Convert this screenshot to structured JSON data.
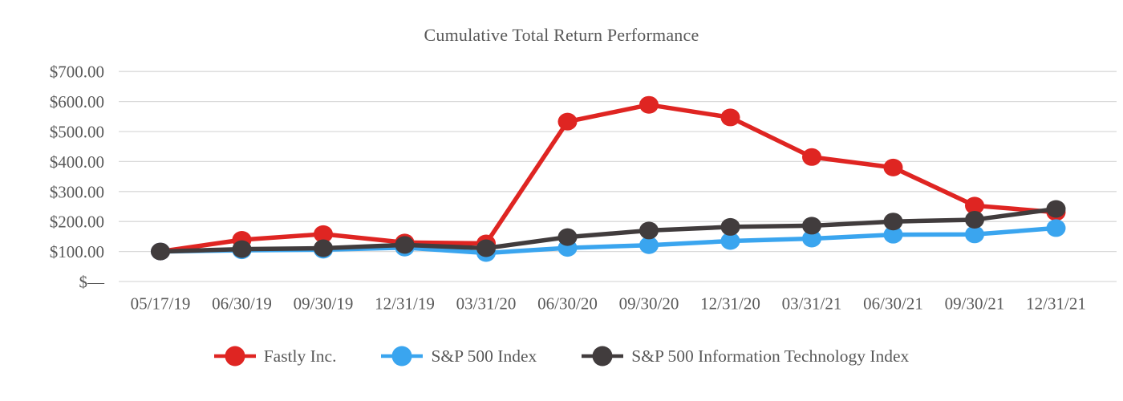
{
  "chart_data": {
    "type": "line",
    "title": "Cumulative Total Return Performance",
    "categories": [
      "05/17/19",
      "06/30/19",
      "09/30/19",
      "12/31/19",
      "03/31/20",
      "06/30/20",
      "09/30/20",
      "12/31/20",
      "03/31/21",
      "06/30/21",
      "09/30/21",
      "12/31/21"
    ],
    "series": [
      {
        "name": "Fastly Inc.",
        "color": "#df2522",
        "values": [
          100,
          139,
          158,
          130,
          127,
          533,
          589,
          547,
          415,
          380,
          253,
          231
        ]
      },
      {
        "name": "S&P 500 Index",
        "color": "#3aa5ef",
        "values": [
          100,
          104,
          106,
          113,
          95,
          112,
          121,
          135,
          143,
          156,
          157,
          178
        ]
      },
      {
        "name": "S&P 500 Information Technology Index",
        "color": "#413c3d",
        "values": [
          100,
          108,
          111,
          122,
          111,
          148,
          170,
          182,
          186,
          200,
          206,
          242
        ]
      }
    ],
    "y_ticks": [
      "$700.00",
      "$600.00",
      "$500.00",
      "$400.00",
      "$300.00",
      "$200.00",
      "$100.00",
      "$—"
    ],
    "y_tick_values": [
      700,
      600,
      500,
      400,
      300,
      200,
      100,
      0
    ],
    "ylim": [
      0,
      700
    ],
    "grid": "horizontal",
    "legend_position": "bottom",
    "axis_text_color": "#595959",
    "gridline_color": "#d9d9d9"
  }
}
